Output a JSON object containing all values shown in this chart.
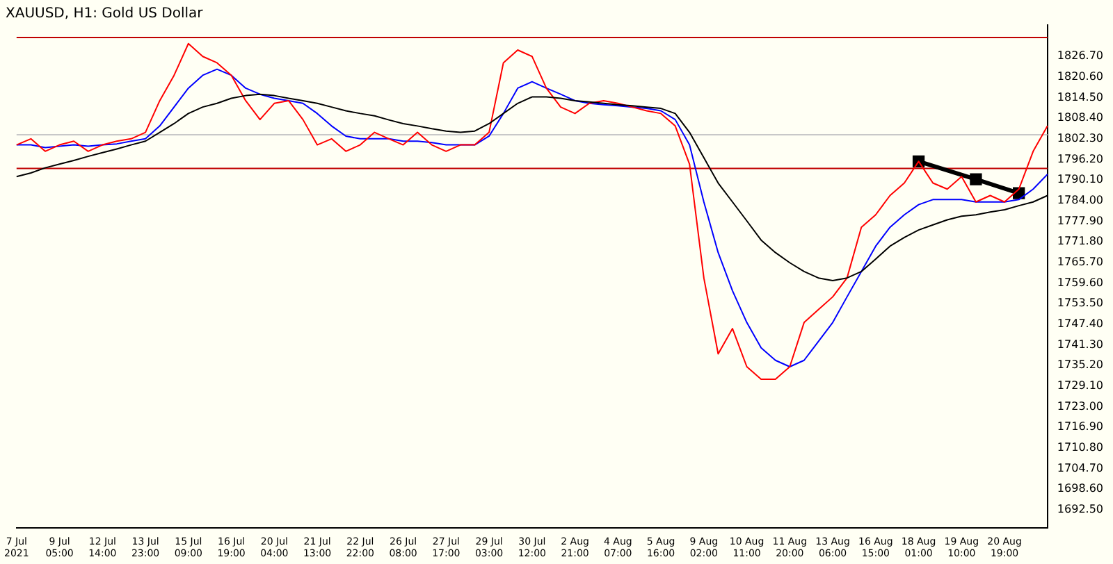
{
  "chart_data": {
    "type": "line",
    "title": "XAUUSD, H1: Gold US Dollar",
    "categories": [
      "7 Jul 2021",
      null,
      null,
      "9 Jul 05:00",
      null,
      null,
      "12 Jul 14:00",
      null,
      null,
      "13 Jul 23:00",
      null,
      null,
      "15 Jul 09:00",
      null,
      null,
      "16 Jul 19:00",
      null,
      null,
      "20 Jul 04:00",
      null,
      null,
      "21 Jul 13:00",
      null,
      null,
      "22 Jul 22:00",
      null,
      null,
      "26 Jul 08:00",
      null,
      null,
      "27 Jul 17:00",
      null,
      null,
      "29 Jul 03:00",
      null,
      null,
      "30 Jul 12:00",
      null,
      null,
      "2 Aug 21:00",
      null,
      null,
      "4 Aug 07:00",
      null,
      null,
      "5 Aug 16:00",
      null,
      null,
      "9 Aug 02:00",
      null,
      null,
      "10 Aug 11:00",
      null,
      null,
      "11 Aug 20:00",
      null,
      null,
      "13 Aug 06:00",
      null,
      null,
      "16 Aug 15:00",
      null,
      null,
      "18 Aug 01:00",
      null,
      null,
      "19 Aug 10:00",
      null,
      null,
      "20 Aug 19:00",
      null,
      null,
      null
    ],
    "series": [
      {
        "color": "#000000",
        "line_style": "solid",
        "values": [
          1791.1,
          1792.2,
          1793.7,
          1794.8,
          1795.9,
          1797.1,
          1798.2,
          1799.3,
          1800.5,
          1801.6,
          1804.2,
          1806.8,
          1809.8,
          1811.7,
          1812.8,
          1814.3,
          1815.1,
          1815.5,
          1815.1,
          1814.3,
          1813.6,
          1812.8,
          1811.7,
          1810.6,
          1809.8,
          1809.1,
          1807.9,
          1806.8,
          1806.1,
          1805.3,
          1804.6,
          1804.2,
          1804.6,
          1806.8,
          1809.8,
          1812.8,
          1814.7,
          1814.7,
          1814.3,
          1813.6,
          1813.2,
          1812.8,
          1812.4,
          1812.1,
          1811.7,
          1811.3,
          1809.8,
          1804.2,
          1796.7,
          1789.2,
          1783.6,
          1778.0,
          1772.3,
          1768.6,
          1765.6,
          1763.0,
          1761.1,
          1760.3,
          1761.1,
          1763.0,
          1766.7,
          1770.5,
          1773.1,
          1775.3,
          1776.8,
          1778.3,
          1779.4,
          1779.8,
          1780.6,
          1781.3,
          1782.5,
          1783.6,
          1785.5
        ]
      },
      {
        "color": "#ff0000",
        "line_style": "solid",
        "values": [
          1800.5,
          1802.3,
          1798.6,
          1800.5,
          1801.6,
          1798.6,
          1800.5,
          1801.6,
          1802.3,
          1804.2,
          1813.6,
          1821.1,
          1830.5,
          1826.7,
          1824.8,
          1821.1,
          1813.6,
          1808.0,
          1812.8,
          1813.6,
          1808.0,
          1800.5,
          1802.3,
          1798.6,
          1800.5,
          1804.2,
          1802.3,
          1800.5,
          1804.2,
          1800.5,
          1798.6,
          1800.5,
          1800.5,
          1804.2,
          1824.8,
          1828.6,
          1826.7,
          1817.3,
          1811.7,
          1809.8,
          1812.8,
          1813.6,
          1812.8,
          1811.7,
          1810.6,
          1809.8,
          1806.1,
          1794.8,
          1761.1,
          1738.6,
          1746.1,
          1734.8,
          1731.1,
          1731.1,
          1734.8,
          1747.9,
          1751.7,
          1755.5,
          1761.1,
          1776.1,
          1779.8,
          1785.5,
          1789.2,
          1795.6,
          1789.2,
          1787.4,
          1791.1,
          1783.6,
          1785.5,
          1783.6,
          1787.4,
          1798.6,
          1806.1
        ]
      },
      {
        "color": "#0000ff",
        "line_style": "solid",
        "values": [
          1800.5,
          1800.5,
          1799.7,
          1800.1,
          1800.5,
          1800.1,
          1800.5,
          1800.8,
          1801.6,
          1802.3,
          1806.1,
          1811.7,
          1817.3,
          1821.1,
          1822.9,
          1821.1,
          1817.3,
          1815.5,
          1814.3,
          1813.6,
          1812.8,
          1809.8,
          1806.1,
          1803.1,
          1802.3,
          1802.3,
          1802.3,
          1801.6,
          1801.6,
          1801.2,
          1800.5,
          1800.5,
          1800.5,
          1803.1,
          1809.8,
          1817.3,
          1819.2,
          1817.3,
          1815.5,
          1813.6,
          1812.8,
          1812.4,
          1812.1,
          1811.7,
          1811.3,
          1810.6,
          1808.0,
          1800.5,
          1783.6,
          1768.6,
          1757.3,
          1747.9,
          1740.4,
          1736.7,
          1734.8,
          1736.7,
          1742.3,
          1747.9,
          1755.5,
          1763.0,
          1770.5,
          1776.1,
          1779.8,
          1782.8,
          1784.3,
          1784.3,
          1784.3,
          1783.6,
          1783.6,
          1783.6,
          1784.3,
          1787.4,
          1791.8
        ]
      },
      {
        "color": "#000000",
        "marker": "square",
        "line_style": "solid",
        "values": [
          null,
          null,
          null,
          null,
          null,
          null,
          null,
          null,
          null,
          null,
          null,
          null,
          null,
          null,
          null,
          null,
          null,
          null,
          null,
          null,
          null,
          null,
          null,
          null,
          null,
          null,
          null,
          null,
          null,
          null,
          null,
          null,
          null,
          null,
          null,
          null,
          null,
          null,
          null,
          null,
          null,
          null,
          null,
          null,
          null,
          null,
          null,
          null,
          null,
          null,
          null,
          null,
          null,
          null,
          null,
          null,
          null,
          null,
          null,
          null,
          null,
          null,
          null,
          1795.6,
          null,
          null,
          null,
          1790.3,
          null,
          null,
          1786.2,
          null,
          null
        ]
      }
    ],
    "ylim": [
      1687,
      1836
    ],
    "yticks": [
      {
        "value": 1826.7,
        "label": "1826.70"
      },
      {
        "value": 1820.6,
        "label": "1820.60"
      },
      {
        "value": 1814.5,
        "label": "1814.50"
      },
      {
        "value": 1808.4,
        "label": "1808.40"
      },
      {
        "value": 1802.3,
        "label": "1802.30"
      },
      {
        "value": 1796.2,
        "label": "1796.20"
      },
      {
        "value": 1790.1,
        "label": "1790.10"
      },
      {
        "value": 1784,
        "label": "1784.00"
      },
      {
        "value": 1777.9,
        "label": "1777.90"
      },
      {
        "value": 1771.8,
        "label": "1771.80"
      },
      {
        "value": 1765.7,
        "label": "1765.70"
      },
      {
        "value": 1759.6,
        "label": "1759.60"
      },
      {
        "value": 1753.5,
        "label": "1753.50"
      },
      {
        "value": 1747.4,
        "label": "1747.40"
      },
      {
        "value": 1741.3,
        "label": "1741.30"
      },
      {
        "value": 1735.2,
        "label": "1735.20"
      },
      {
        "value": 1729.1,
        "label": "1729.10"
      },
      {
        "value": 1723,
        "label": "1723.00"
      },
      {
        "value": 1716.9,
        "label": "1716.90"
      },
      {
        "value": 1710.8,
        "label": "1710.80"
      },
      {
        "value": 1704.7,
        "label": "1704.70"
      },
      {
        "value": 1698.6,
        "label": "1698.60"
      },
      {
        "value": 1692.5,
        "label": "1692.50"
      }
    ],
    "ref_lines": [
      {
        "axis": "y",
        "value": 1832.3,
        "color": "#c00000"
      },
      {
        "axis": "y",
        "value": 1803.5,
        "color": "#c8c8c8"
      },
      {
        "axis": "y",
        "value": 1793.5,
        "color": "#c00000"
      }
    ],
    "grid": false,
    "legend": false
  }
}
